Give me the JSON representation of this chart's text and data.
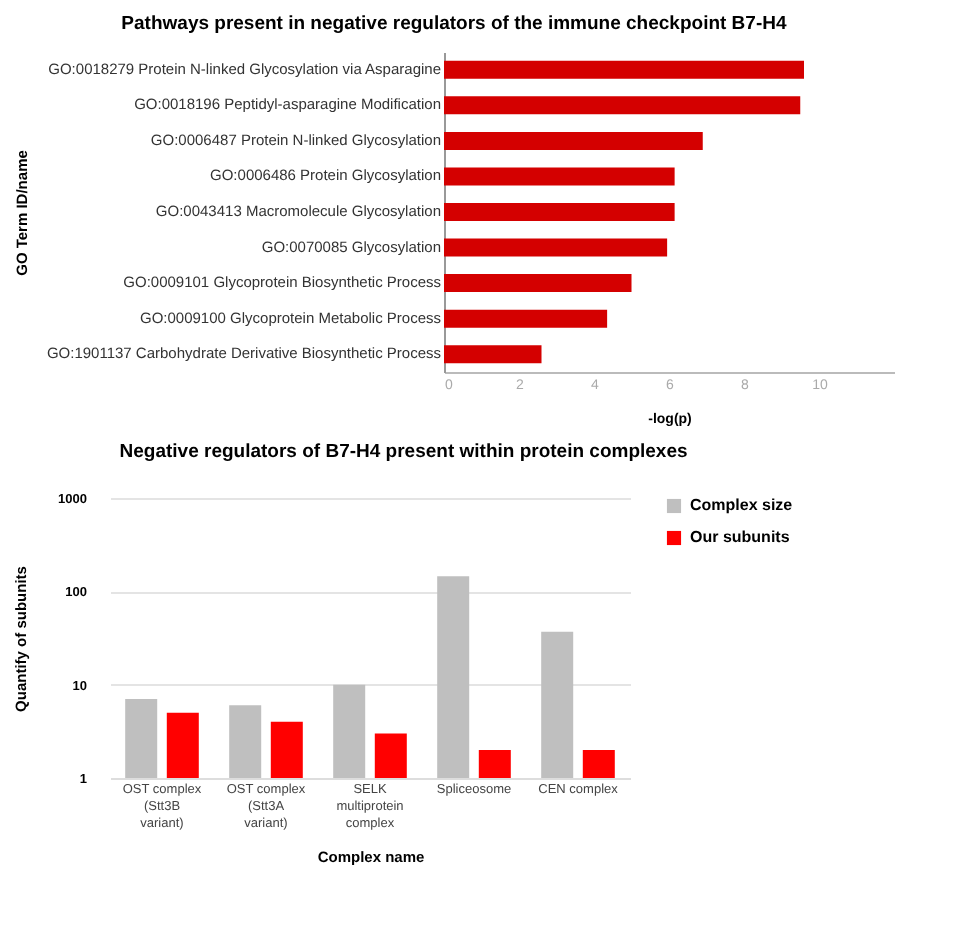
{
  "chart_data": [
    {
      "type": "bar",
      "orientation": "horizontal",
      "title": "Pathways present in negative regulators of the immune checkpoint B7-H4",
      "xlabel": "-log(p)",
      "ylabel": "GO Term ID/name",
      "categories": [
        "GO:0018279 Protein N-linked Glycosylation via Asparagine",
        "GO:0018196 Peptidyl-asparagine Modification",
        "GO:0006487 Protein N-linked Glycosylation",
        "GO:0006486 Protein Glycosylation",
        "GO:0043413 Macromolecule Glycosylation",
        "GO:0070085 Glycosylation",
        "GO:0009101 Glycoprotein Biosynthetic Process",
        "GO:0009100 Glycoprotein Metabolic Process",
        "GO:1901137 Carbohydrate Derivative Biosynthetic Process"
      ],
      "values": [
        9.6,
        9.5,
        6.9,
        6.15,
        6.15,
        5.95,
        5.0,
        4.35,
        2.6
      ],
      "color": "#d40000",
      "xlim": [
        0,
        12
      ],
      "xticks": [
        0,
        2,
        4,
        6,
        8,
        10
      ],
      "grid": false
    },
    {
      "type": "bar",
      "title": "Negative regulators of B7-H4 present within protein complexes",
      "xlabel": "Complex name",
      "ylabel": "Quantify of subunits",
      "categories": [
        "OST complex (Stt3B variant)",
        "OST complex (Stt3A variant)",
        "SELK multiprotein complex",
        "Spliceosome",
        "CEN complex"
      ],
      "series": [
        {
          "name": "Complex size",
          "color": "#bfbfbf",
          "values": [
            7,
            6,
            10,
            145,
            37
          ]
        },
        {
          "name": "Our subunits",
          "color": "#ff0000",
          "values": [
            5,
            4,
            3,
            2,
            2
          ]
        }
      ],
      "log": "y",
      "ylim": [
        1,
        1000
      ],
      "yticks": [
        1,
        10,
        100,
        1000
      ],
      "grid": "y",
      "legend": "right"
    }
  ]
}
